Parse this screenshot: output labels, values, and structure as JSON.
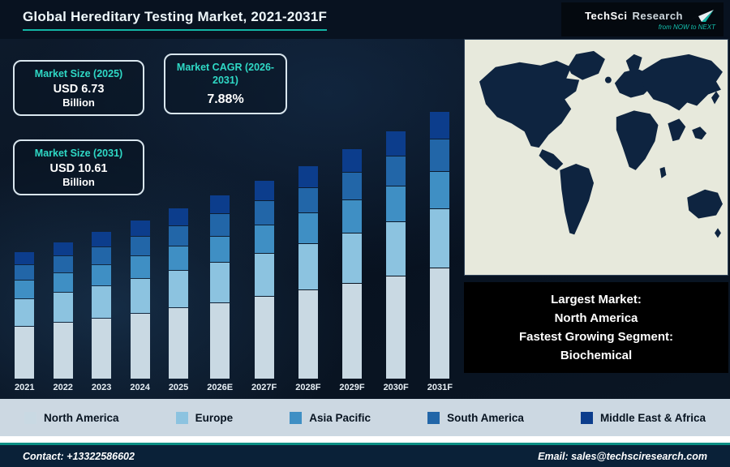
{
  "header": {
    "title": "Global Hereditary Testing Market, 2021-2031F",
    "logo": {
      "brand1": "TechSci",
      "brand2": "Research",
      "tagline": "from NOW to NEXT"
    }
  },
  "stats": [
    {
      "label": "Market Size (2025)",
      "value": "USD 6.73",
      "unit": "Billion"
    },
    {
      "label": "Market CAGR (2026-2031)",
      "value": "7.88%"
    },
    {
      "label": "Market Size (2031)",
      "value": "USD 10.61",
      "unit": "Billion"
    }
  ],
  "chart_data": {
    "type": "bar",
    "stacked": true,
    "title": "Global Hereditary Testing Market, 2021-2031F",
    "unit": "USD Billion",
    "categories": [
      "2021",
      "2022",
      "2023",
      "2024",
      "2025",
      "2026E",
      "2027F",
      "2028F",
      "2029F",
      "2030F",
      "2031F"
    ],
    "series": [
      {
        "name": "North America",
        "color": "#c9d9e3",
        "values": [
          2.09,
          2.25,
          2.43,
          2.62,
          2.83,
          3.05,
          3.29,
          3.55,
          3.83,
          4.13,
          4.46
        ]
      },
      {
        "name": "Europe",
        "color": "#8cc3e0",
        "values": [
          1.09,
          1.18,
          1.27,
          1.37,
          1.48,
          1.6,
          1.72,
          1.86,
          2.0,
          2.16,
          2.33
        ]
      },
      {
        "name": "Asia Pacific",
        "color": "#3f8fc4",
        "values": [
          0.7,
          0.75,
          0.81,
          0.87,
          0.94,
          1.02,
          1.1,
          1.18,
          1.28,
          1.38,
          1.49
        ]
      },
      {
        "name": "South America",
        "color": "#2266a8",
        "values": [
          0.6,
          0.64,
          0.69,
          0.75,
          0.81,
          0.87,
          0.94,
          1.01,
          1.09,
          1.18,
          1.27
        ]
      },
      {
        "name": "Middle East & Africa",
        "color": "#0c3d8c",
        "values": [
          0.5,
          0.54,
          0.58,
          0.62,
          0.67,
          0.73,
          0.78,
          0.84,
          0.91,
          0.98,
          1.06
        ]
      }
    ],
    "totals": [
      4.98,
      5.36,
      5.78,
      6.23,
      6.73,
      7.27,
      7.83,
      8.44,
      9.11,
      9.83,
      10.61
    ],
    "ylim": [
      0,
      11
    ],
    "legend_position": "bottom"
  },
  "highlight": {
    "lines": [
      "Largest Market:",
      "North America",
      "Fastest Growing Segment:",
      "Biochemical"
    ]
  },
  "footer": {
    "contact": "Contact: +13322586602",
    "email": "Email: sales@techsciresearch.com"
  },
  "colors": {
    "accent_teal": "#12b5a5",
    "background": "#0a1522",
    "legend_bg": "#ccd8e2",
    "footer_bg": "#0a2138",
    "highlight_bg": "#000000",
    "map_land": "#0e2440",
    "map_bg": "#e7e9dc"
  }
}
